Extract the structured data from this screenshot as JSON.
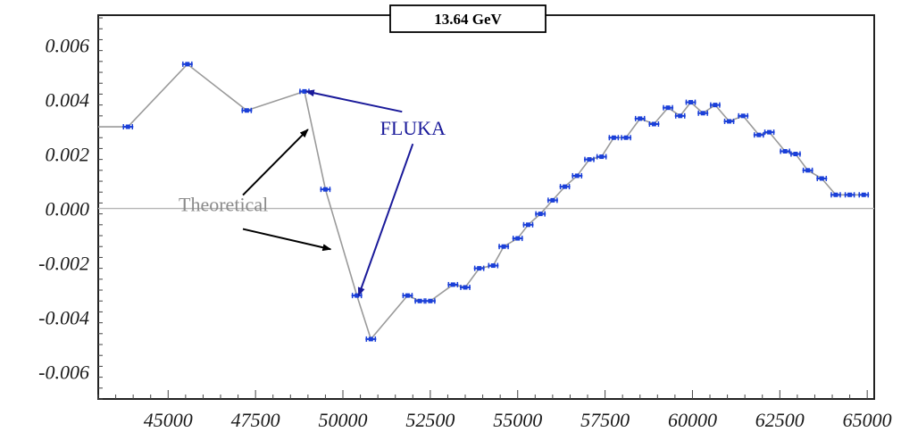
{
  "chart_data": {
    "type": "scatter",
    "title": "13.64 GeV",
    "xlim": [
      43000,
      65200
    ],
    "ylim": [
      -0.007,
      0.0071
    ],
    "x_ticks": [
      45000,
      47500,
      50000,
      52500,
      55000,
      57500,
      60000,
      62500,
      65000
    ],
    "y_ticks": [
      -0.006,
      -0.004,
      -0.002,
      0.0,
      0.002,
      0.004,
      0.006
    ],
    "x_tick_labels": [
      "45000",
      "47500",
      "50000",
      "52500",
      "55000",
      "57500",
      "60000",
      "62500",
      "65000"
    ],
    "y_tick_labels": [
      "-0.006",
      "-0.004",
      "-0.002",
      "0.000",
      "0.002",
      "0.004",
      "0.006"
    ],
    "grid": false,
    "zero_line": true,
    "series": [
      {
        "role": "theoretical",
        "color": "#9a9a9a",
        "x": [
          43000,
          43850,
          45550,
          47250,
          48900,
          49500,
          50400,
          50800,
          51850,
          52200,
          52500,
          53150,
          53500,
          53900,
          54300,
          54600,
          55000,
          55300,
          55650,
          56000,
          56350,
          56700,
          57050,
          57400,
          57750,
          58100,
          58500,
          58900,
          59300,
          59650,
          59950,
          60300,
          60650,
          61050,
          61450,
          61900,
          62200,
          62650,
          62950,
          63300,
          63700,
          64100,
          64500,
          64900
        ],
        "y": [
          0.003,
          0.003,
          0.0053,
          0.0036,
          0.0043,
          0.0007,
          -0.0032,
          -0.0048,
          -0.0032,
          -0.0034,
          -0.0034,
          -0.0028,
          -0.0029,
          -0.0022,
          -0.0021,
          -0.0014,
          -0.0011,
          -0.0006,
          -0.0002,
          0.0003,
          0.0008,
          0.0012,
          0.0018,
          0.0019,
          0.0026,
          0.0026,
          0.0033,
          0.0031,
          0.0037,
          0.0034,
          0.0039,
          0.0035,
          0.0038,
          0.0032,
          0.0034,
          0.0027,
          0.0028,
          0.0021,
          0.002,
          0.0014,
          0.0011,
          0.0005,
          0.0005,
          0.0005
        ]
      },
      {
        "role": "fluka",
        "color": "#1a3fd8",
        "x": [
          43850,
          45550,
          47250,
          48900,
          49500,
          50400,
          50800,
          51850,
          52200,
          52500,
          53150,
          53500,
          53900,
          54300,
          54600,
          55000,
          55300,
          55650,
          56000,
          56350,
          56700,
          57050,
          57400,
          57750,
          58100,
          58500,
          58900,
          59300,
          59650,
          59950,
          60300,
          60650,
          61050,
          61450,
          61900,
          62200,
          62650,
          62950,
          63300,
          63700,
          64100,
          64500,
          64900
        ],
        "y": [
          0.003,
          0.0053,
          0.0036,
          0.0043,
          0.0007,
          -0.0032,
          -0.0048,
          -0.0032,
          -0.0034,
          -0.0034,
          -0.0028,
          -0.0029,
          -0.0022,
          -0.0021,
          -0.0014,
          -0.0011,
          -0.0006,
          -0.0002,
          0.0003,
          0.0008,
          0.0012,
          0.0018,
          0.0019,
          0.0026,
          0.0026,
          0.0033,
          0.0031,
          0.0037,
          0.0034,
          0.0039,
          0.0035,
          0.0038,
          0.0032,
          0.0034,
          0.0027,
          0.0028,
          0.0021,
          0.002,
          0.0014,
          0.0011,
          0.0005,
          0.0005,
          0.0005
        ]
      }
    ],
    "annotations": [
      {
        "text": "FLUKA",
        "color": "#1a1a9a",
        "arrow_color": "#1a1a9a",
        "label_at": [
          52000,
          0.0027
        ],
        "points_to": [
          [
            48950,
            0.0043
          ],
          [
            50450,
            -0.0032
          ]
        ]
      },
      {
        "text": "Theoretical",
        "color": "#8a8a8a",
        "arrow_color": "#000000",
        "label_at": [
          45300,
          -0.0001
        ],
        "points_to": [
          [
            49000,
            0.0029
          ],
          [
            49650,
            -0.0015
          ]
        ]
      }
    ]
  }
}
